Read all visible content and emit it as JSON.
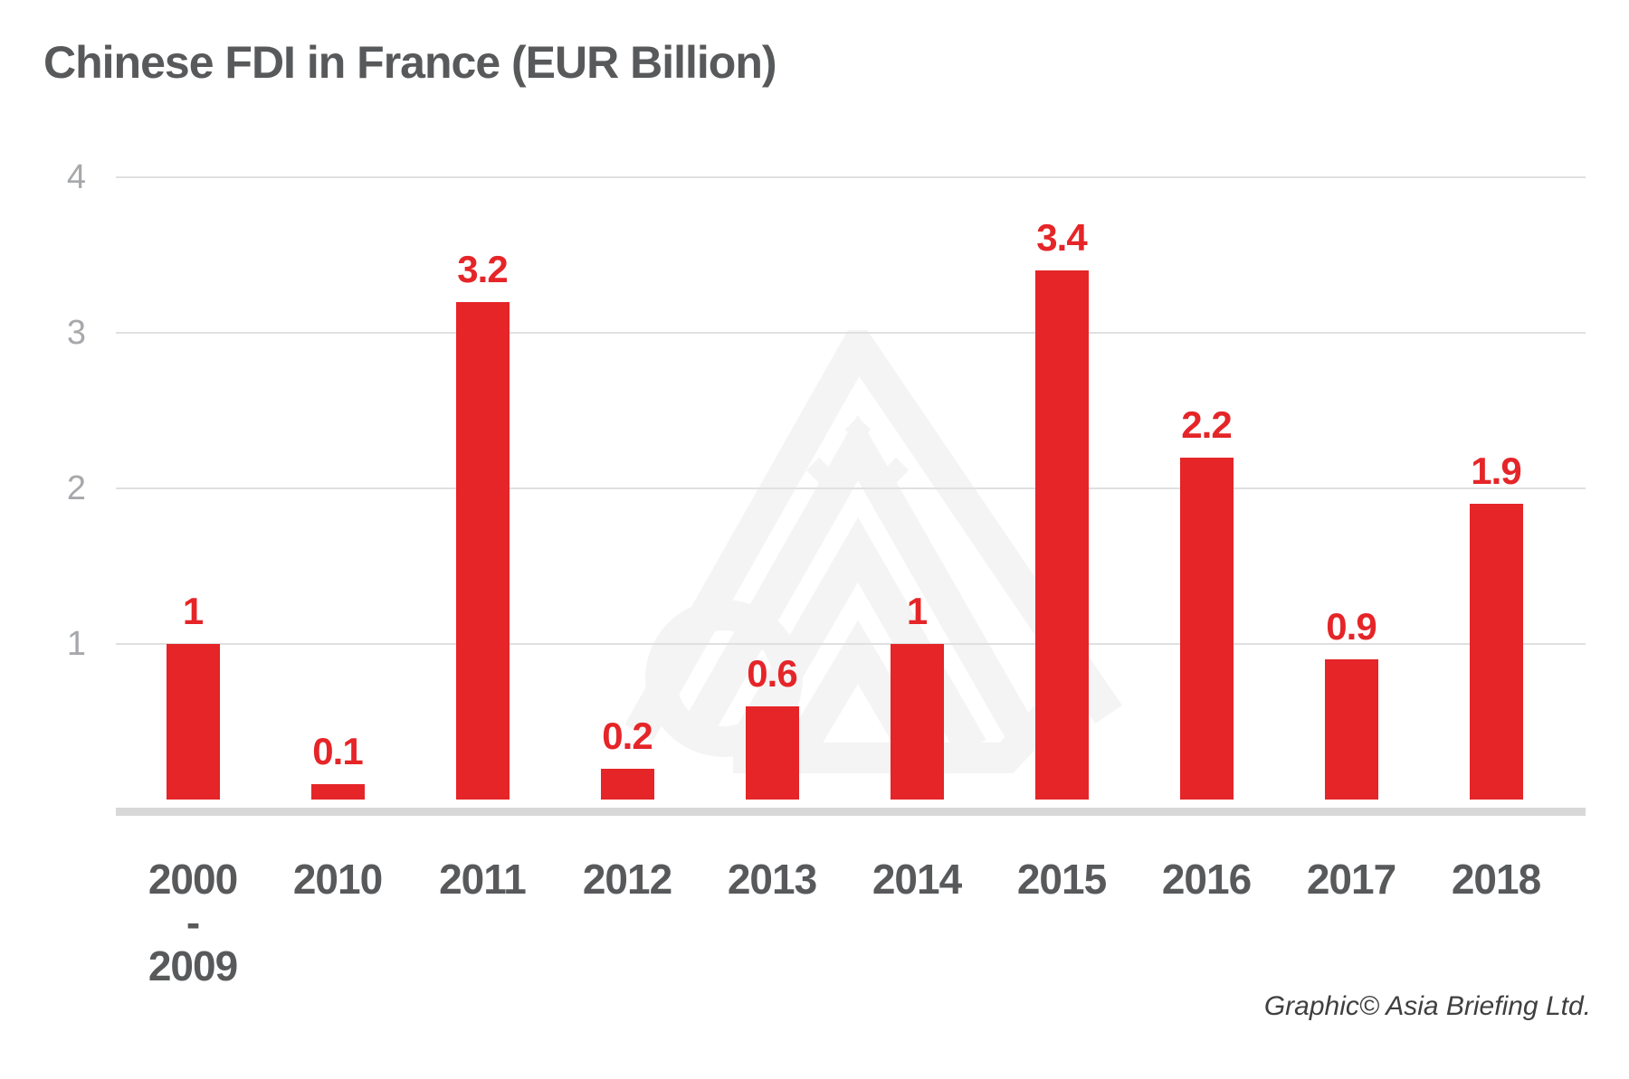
{
  "page": {
    "title": "Chinese FDI in France (EUR Billion)",
    "credit": "Graphic© Asia Briefing Ltd.",
    "background": "#ffffff",
    "watermark_icon": "asia-briefing-logo-watermark"
  },
  "colors": {
    "bar_red": "#e52528",
    "title_gray": "#58595b",
    "axis_label_gray": "#a6a8ab",
    "gridline_gray": "#e0e0e0",
    "baseline_gray": "#d8d8d8",
    "watermark_gray": "#f4f4f4",
    "credit_gray": "#3f3f3f"
  },
  "chart_data": {
    "type": "bar",
    "title": "Chinese FDI in France (EUR Billion)",
    "unit": "EUR Billion",
    "categories": [
      "2000\n-\n2009",
      "2010",
      "2011",
      "2012",
      "2013",
      "2014",
      "2015",
      "2016",
      "2017",
      "2018"
    ],
    "values": [
      1,
      0.1,
      3.2,
      0.2,
      0.6,
      1,
      3.4,
      2.2,
      0.9,
      1.9
    ],
    "value_labels": [
      "1",
      "0.1",
      "3.2",
      "0.2",
      "0.6",
      "1",
      "3.4",
      "2.2",
      "0.9",
      "1.9"
    ],
    "xlabel": "",
    "ylabel": "",
    "ylim": [
      0,
      4
    ],
    "yticks": [
      4,
      3,
      2,
      1
    ],
    "grid": "horizontal-only",
    "legend": "none",
    "bar_color": "#e52528",
    "data_label_position": "above-bar"
  }
}
